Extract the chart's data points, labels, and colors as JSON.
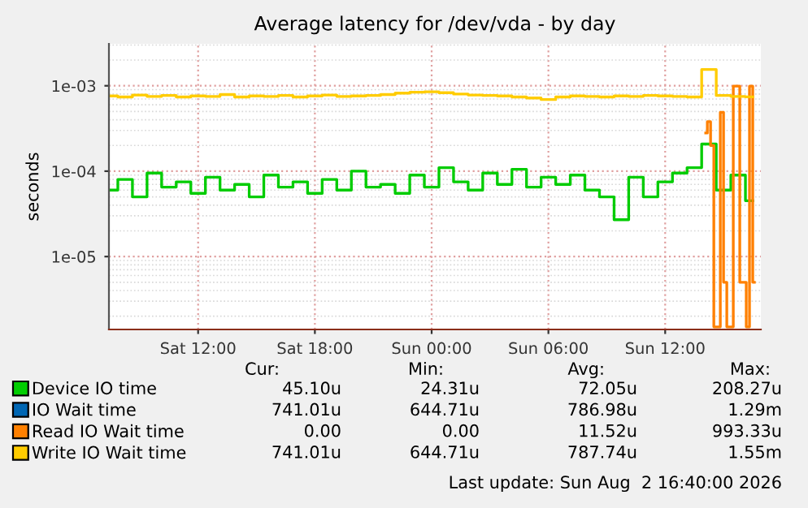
{
  "chart_data": {
    "type": "step",
    "title": "Average latency for /dev/vda - by day",
    "ylabel": "seconds",
    "x": [
      "2026-08-01T07:30",
      "2026-08-01T08:15",
      "2026-08-01T09:00",
      "2026-08-01T09:45",
      "2026-08-01T10:30",
      "2026-08-01T11:15",
      "2026-08-01T12:00",
      "2026-08-01T12:45",
      "2026-08-01T13:30",
      "2026-08-01T14:15",
      "2026-08-01T15:00",
      "2026-08-01T15:45",
      "2026-08-01T16:30",
      "2026-08-01T17:15",
      "2026-08-01T18:00",
      "2026-08-01T18:45",
      "2026-08-01T19:30",
      "2026-08-01T20:15",
      "2026-08-01T21:00",
      "2026-08-01T21:45",
      "2026-08-01T22:30",
      "2026-08-01T23:15",
      "2026-08-02T00:00",
      "2026-08-02T00:45",
      "2026-08-02T01:30",
      "2026-08-02T02:15",
      "2026-08-02T03:00",
      "2026-08-02T03:45",
      "2026-08-02T04:30",
      "2026-08-02T05:15",
      "2026-08-02T06:00",
      "2026-08-02T06:45",
      "2026-08-02T07:30",
      "2026-08-02T08:15",
      "2026-08-02T09:00",
      "2026-08-02T09:45",
      "2026-08-02T10:30",
      "2026-08-02T11:15",
      "2026-08-02T12:00",
      "2026-08-02T12:45",
      "2026-08-02T13:30",
      "2026-08-02T14:15",
      "2026-08-02T15:00",
      "2026-08-02T15:45",
      "2026-08-02T16:30"
    ],
    "series": [
      {
        "name": "Device IO time",
        "color": "#00cc00",
        "values": [
          6e-05,
          8e-05,
          5e-05,
          9.5e-05,
          6.5e-05,
          7.5e-05,
          5.5e-05,
          8.5e-05,
          6e-05,
          7e-05,
          5e-05,
          9e-05,
          6.5e-05,
          7.5e-05,
          5.5e-05,
          8e-05,
          6e-05,
          0.0001,
          6.5e-05,
          7e-05,
          5.5e-05,
          9e-05,
          6.5e-05,
          0.00011,
          7.5e-05,
          6e-05,
          9.5e-05,
          7e-05,
          0.000105,
          6.5e-05,
          8.5e-05,
          7e-05,
          9e-05,
          6e-05,
          5e-05,
          2.7e-05,
          8.5e-05,
          5e-05,
          7.5e-05,
          9.5e-05,
          0.00011,
          0.000208,
          6e-05,
          9e-05,
          4.51e-05
        ]
      },
      {
        "name": "IO Wait time",
        "color": "#0066b3",
        "values": [
          null,
          null,
          null,
          null,
          null,
          null,
          null,
          null,
          null,
          null,
          null,
          null,
          null,
          null,
          null,
          null,
          null,
          null,
          null,
          null,
          null,
          null,
          null,
          null,
          null,
          null,
          null,
          null,
          null,
          null,
          null,
          null,
          null,
          null,
          null,
          null,
          null,
          null,
          null,
          null,
          null,
          null,
          null,
          null,
          null
        ]
      },
      {
        "name": "Read IO Wait time",
        "color": "#ff8000",
        "x": [
          "2026-08-02T14:05",
          "2026-08-02T14:15",
          "2026-08-02T14:25",
          "2026-08-02T14:35",
          "2026-08-02T14:45",
          "2026-08-02T14:55",
          "2026-08-02T15:05",
          "2026-08-02T15:15",
          "2026-08-02T15:25",
          "2026-08-02T15:35",
          "2026-08-02T15:45",
          "2026-08-02T15:55",
          "2026-08-02T16:05",
          "2026-08-02T16:15",
          "2026-08-02T16:25",
          "2026-08-02T16:35"
        ],
        "values": [
          0.00028,
          0.00038,
          0.0002,
          1.5e-06,
          1.5e-06,
          0.00049,
          5e-06,
          1.5e-06,
          1.5e-06,
          0.00099,
          0.00099,
          5e-06,
          5e-06,
          1.5e-06,
          0.00099,
          5e-06
        ]
      },
      {
        "name": "Write IO Wait time",
        "color": "#ffcc00",
        "values": [
          0.00076,
          0.00074,
          0.00078,
          0.00075,
          0.00077,
          0.00074,
          0.00076,
          0.00075,
          0.00079,
          0.00074,
          0.00076,
          0.00075,
          0.00077,
          0.00074,
          0.00076,
          0.00078,
          0.00075,
          0.00076,
          0.00077,
          0.00079,
          0.00082,
          0.00084,
          0.00085,
          0.00083,
          0.0008,
          0.00078,
          0.00077,
          0.00076,
          0.00074,
          0.00072,
          0.00069,
          0.00074,
          0.00076,
          0.00075,
          0.00074,
          0.00076,
          0.00075,
          0.00077,
          0.00076,
          0.00075,
          0.00074,
          0.00155,
          0.00077,
          0.00075,
          0.000741
        ]
      }
    ],
    "log": "y",
    "ylim": [
      1.4e-06,
      0.0031
    ],
    "yticks": [
      {
        "value": 1e-05,
        "label": "1e-05"
      },
      {
        "value": 0.0001,
        "label": "1e-04"
      },
      {
        "value": 0.001,
        "label": "1e-03"
      }
    ],
    "xlim": [
      "2026-08-01T07:25",
      "2026-08-02T16:55"
    ],
    "xticks": [
      {
        "value": "2026-08-01T12:00",
        "label": "Sat 12:00"
      },
      {
        "value": "2026-08-01T18:00",
        "label": "Sat 18:00"
      },
      {
        "value": "2026-08-02T00:00",
        "label": "Sun 00:00"
      },
      {
        "value": "2026-08-02T06:00",
        "label": "Sun 06:00"
      },
      {
        "value": "2026-08-02T12:00",
        "label": "Sun 12:00"
      }
    ],
    "grid": true,
    "legend": "bottom",
    "annotations": [
      "Cur:",
      "Min:",
      "Avg:",
      "Max:",
      "45.10u",
      "24.31u",
      "72.05u",
      "208.27u",
      "741.01u",
      "644.71u",
      "786.98u",
      "1.29m",
      "0.00",
      "0.00",
      "11.52u",
      "993.33u",
      "741.01u",
      "644.71u",
      "787.74u",
      "1.55m",
      "Last update: Sun Aug  2 16:40:00 2026"
    ]
  }
}
